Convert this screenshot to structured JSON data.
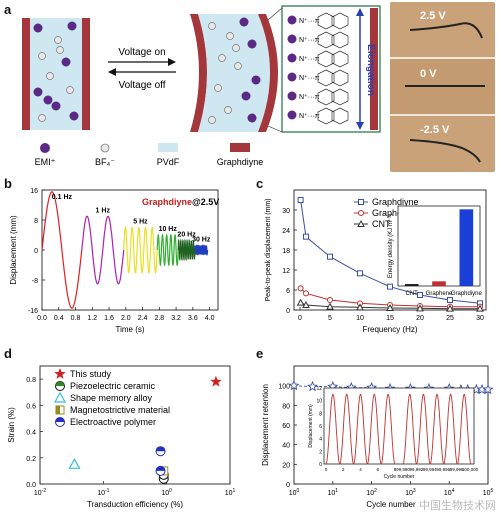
{
  "a": {
    "label": "a",
    "arrow_on": "Voltage on",
    "arrow_off": "Voltage off",
    "elongation": "Elongation",
    "ion_label": "N⁺···π",
    "legend": [
      "EMI⁺",
      "BF₄⁻",
      "PVdF",
      "Graphdiyne"
    ],
    "photo_volts": [
      "2.5 V",
      "0 V",
      "-2.5 V"
    ],
    "colors": {
      "emi": "#5b2a86",
      "bf4": "#d9d9d9",
      "pvdf": "#cfe7f0",
      "graphdiyne": "#a3373b"
    }
  },
  "b": {
    "label": "b",
    "title": "Graphdiyne",
    "subtitle": "@2.5V",
    "freqs": [
      "0.1 Hz",
      "1 Hz",
      "5 Hz",
      "10 Hz",
      "20 Hz",
      "30 Hz"
    ]
  },
  "c": {
    "label": "c",
    "inset_cats": [
      "CNT",
      "Graphene",
      "Graphdiyne"
    ]
  },
  "d": {
    "label": "d"
  },
  "e": {
    "label": "e"
  },
  "watermark": "中国生物技术网",
  "chart_data": [
    {
      "type": "line",
      "id": "b",
      "title": "Graphdiyne @2.5V",
      "xlabel": "Time (s)",
      "ylabel": "Displacement (mm)",
      "xlim": [
        0,
        4.2
      ],
      "ylim": [
        -16,
        16
      ],
      "xticks": [
        0,
        0.4,
        0.8,
        1.2,
        1.6,
        2.0,
        2.4,
        2.8,
        3.2,
        3.6,
        4.0
      ],
      "yticks": [
        -16,
        -8,
        0,
        8,
        16
      ],
      "series": [
        {
          "name": "0.1 Hz",
          "color": "#e02020",
          "x0": 0.0,
          "x1": 0.95,
          "amp": 15.5,
          "cycles": 1
        },
        {
          "name": "1 Hz",
          "color": "#b020b0",
          "x0": 0.95,
          "x1": 1.95,
          "amp": 9,
          "cycles": 2
        },
        {
          "name": "5 Hz",
          "color": "#e8e020",
          "x0": 1.95,
          "x1": 2.75,
          "amp": 6,
          "cycles": 5
        },
        {
          "name": "10 Hz",
          "color": "#30b030",
          "x0": 2.75,
          "x1": 3.25,
          "amp": 4,
          "cycles": 5
        },
        {
          "name": "20 Hz",
          "color": "#206020",
          "x0": 3.25,
          "x1": 3.65,
          "amp": 2.5,
          "cycles": 8
        },
        {
          "name": "30 Hz",
          "color": "#2040c0",
          "x0": 3.65,
          "x1": 3.95,
          "amp": 1.2,
          "cycles": 9
        }
      ]
    },
    {
      "type": "line",
      "id": "c",
      "xlabel": "Frequency (Hz)",
      "ylabel": "Peak-to-peak displacement (mm)",
      "xlim": [
        -1,
        31
      ],
      "ylim": [
        0,
        36
      ],
      "xticks": [
        0,
        5,
        10,
        15,
        20,
        25,
        30
      ],
      "yticks": [
        0,
        6,
        12,
        18,
        24,
        30
      ],
      "series": [
        {
          "name": "Graphdiyne",
          "color": "#3a4fa8",
          "marker": "square",
          "x": [
            0.1,
            1,
            5,
            10,
            15,
            20,
            25,
            30
          ],
          "y": [
            33,
            22,
            16,
            11,
            7,
            4.5,
            3,
            2
          ]
        },
        {
          "name": "Graphene",
          "color": "#c03030",
          "marker": "circle",
          "x": [
            0.1,
            1,
            5,
            10,
            15,
            20,
            25,
            30
          ],
          "y": [
            6.5,
            5,
            3,
            2,
            1.5,
            1.2,
            1,
            1
          ]
        },
        {
          "name": "CNT",
          "color": "#333333",
          "marker": "triangle",
          "x": [
            0.1,
            1,
            5,
            10,
            15,
            20,
            25,
            30
          ],
          "y": [
            2.2,
            1.5,
            1,
            0.8,
            0.6,
            0.5,
            0.4,
            0.4
          ]
        }
      ],
      "inset": {
        "type": "bar",
        "ylabel": "Energy density (KJ m⁻³)",
        "categories": [
          "CNT",
          "Graphene",
          "Graphdiyne"
        ],
        "values": [
          0.3,
          0.7,
          11.5
        ],
        "colors": [
          "#222222",
          "#c03030",
          "#1a3fd9"
        ],
        "ylim": [
          0,
          12
        ]
      }
    },
    {
      "type": "scatter",
      "id": "d",
      "xlabel": "Transduction efficiency (%)",
      "ylabel": "Strain (%)",
      "xscale": "log",
      "xlim": [
        0.01,
        10
      ],
      "ylim": [
        0,
        0.9
      ],
      "yticks": [
        0.0,
        0.2,
        0.4,
        0.6,
        0.8
      ],
      "series": [
        {
          "name": "This study",
          "marker": "star",
          "color": "#d02020",
          "points": [
            [
              6,
              0.78
            ]
          ]
        },
        {
          "name": "Piezoelectric ceramic",
          "marker": "half-circle",
          "color": "#2a8a2a",
          "points": [
            [
              0.9,
              0.04
            ],
            [
              0.9,
              0.07
            ]
          ]
        },
        {
          "name": "Shape memory alloy",
          "marker": "triangle",
          "color": "#30c0e0",
          "points": [
            [
              0.035,
              0.15
            ]
          ]
        },
        {
          "name": "Magnetostrictive material",
          "marker": "half-square",
          "color": "#9a8a20",
          "points": [
            [
              0.9,
              0.1
            ]
          ]
        },
        {
          "name": "Electroactive polymer",
          "marker": "half-circle-blue",
          "color": "#2030c0",
          "points": [
            [
              0.8,
              0.25
            ],
            [
              0.8,
              0.1
            ]
          ]
        }
      ]
    },
    {
      "type": "scatter",
      "id": "e",
      "xlabel": "Cycle number",
      "ylabel": "Displacement retention",
      "xscale": "log",
      "xlim": [
        1,
        100000
      ],
      "ylim": [
        0,
        120
      ],
      "yticks": [
        0,
        20,
        40,
        60,
        80,
        100
      ],
      "series": [
        {
          "name": "Displacement retention",
          "marker": "star-open",
          "color": "#3a4fa8",
          "x": [
            1,
            3,
            10,
            30,
            100,
            300,
            1000,
            3000,
            10000,
            20000,
            30000,
            50000,
            70000,
            100000
          ],
          "y": [
            100,
            99,
            99,
            98,
            98,
            97,
            97,
            97,
            97,
            96,
            96,
            96,
            96,
            96
          ]
        }
      ],
      "inset": {
        "type": "line",
        "ylabel": "Displacement (mm)",
        "xlabel": "Cycle number",
        "xticks": [
          0,
          2,
          4,
          6,
          8,
          99990,
          99992,
          99994,
          99996,
          99998,
          100000
        ],
        "yticks": [
          0,
          2,
          4,
          6,
          8,
          10,
          12
        ],
        "amp": 11,
        "cycles": 10,
        "color": "#c03030"
      }
    }
  ]
}
